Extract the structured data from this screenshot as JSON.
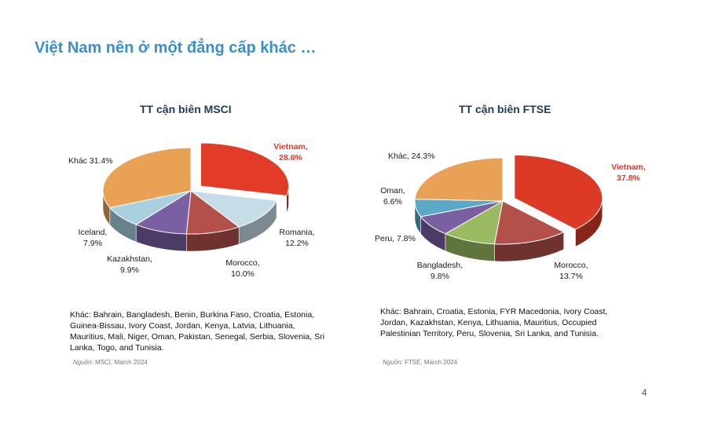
{
  "slide": {
    "title": "Việt Nam nên ở một đẳng cấp khác …",
    "page_number": "4"
  },
  "chart_data": [
    {
      "type": "pie",
      "title": "TT cận biên MSCI",
      "slices": [
        {
          "label": "Vietnam",
          "value": 28.6,
          "value_label": "28.6%",
          "exploded": true,
          "color": "#e23c28"
        },
        {
          "label": "Romania",
          "value": 12.2,
          "value_label": "12.2%",
          "color": "#c6dde8"
        },
        {
          "label": "Morocco",
          "value": 10.0,
          "value_label": "10.0%",
          "color": "#b4504a"
        },
        {
          "label": "Kazakhstan",
          "value": 9.9,
          "value_label": "9.9%",
          "color": "#7b5fa3"
        },
        {
          "label": "Iceland",
          "value": 7.9,
          "value_label": "7.9%",
          "color": "#a9d0df"
        },
        {
          "label": "Khác",
          "value": 31.4,
          "value_label": "31.4%",
          "color": "#e9a156"
        }
      ],
      "footnote": "Khác: Bahrain, Bangladesh, Benin, Burkina Faso, Croatia, Estonia, Guinea-Bissau, Ivory Coast, Jordan, Kenya, Latvia, Lithuania, Mauritius, Mali, Niger, Oman, Pakistan, Senegal, Serbia, Slovenia, Sri Lanka, Togo, and Tunisia.",
      "source_prefix": "Nguồn",
      "source_text": ": MSCI, March 2024"
    },
    {
      "type": "pie",
      "title": "TT cận biên FTSE",
      "slices": [
        {
          "label": "Vietnam",
          "value": 37.8,
          "value_label": "37.8%",
          "exploded": true,
          "color": "#dd3a26"
        },
        {
          "label": "Morocco",
          "value": 13.7,
          "value_label": "13.7%",
          "color": "#b4504a"
        },
        {
          "label": "Bangladesh",
          "value": 9.8,
          "value_label": "9.8%",
          "color": "#9bbb62"
        },
        {
          "label": "Peru",
          "value": 7.8,
          "value_label": "7.8%",
          "color": "#7b5fa3"
        },
        {
          "label": "Oman",
          "value": 6.6,
          "value_label": "6.6%",
          "color": "#5ba8c8"
        },
        {
          "label": "Khác",
          "value": 24.3,
          "value_label": "24.3%",
          "color": "#e9a156"
        }
      ],
      "footnote": "Khác: Bahrain, Croatia, Estonia, FYR Macedonia, Ivory Coast, Jordan, Kazakhstan, Kenya, Lithuania, Mauritius, Occupied Palestinian Territory, Peru, Slovenia, Sri Lanka, and Tunisia.",
      "source_prefix": "Nguồn",
      "source_text": ": FTSE, March 2024"
    }
  ]
}
